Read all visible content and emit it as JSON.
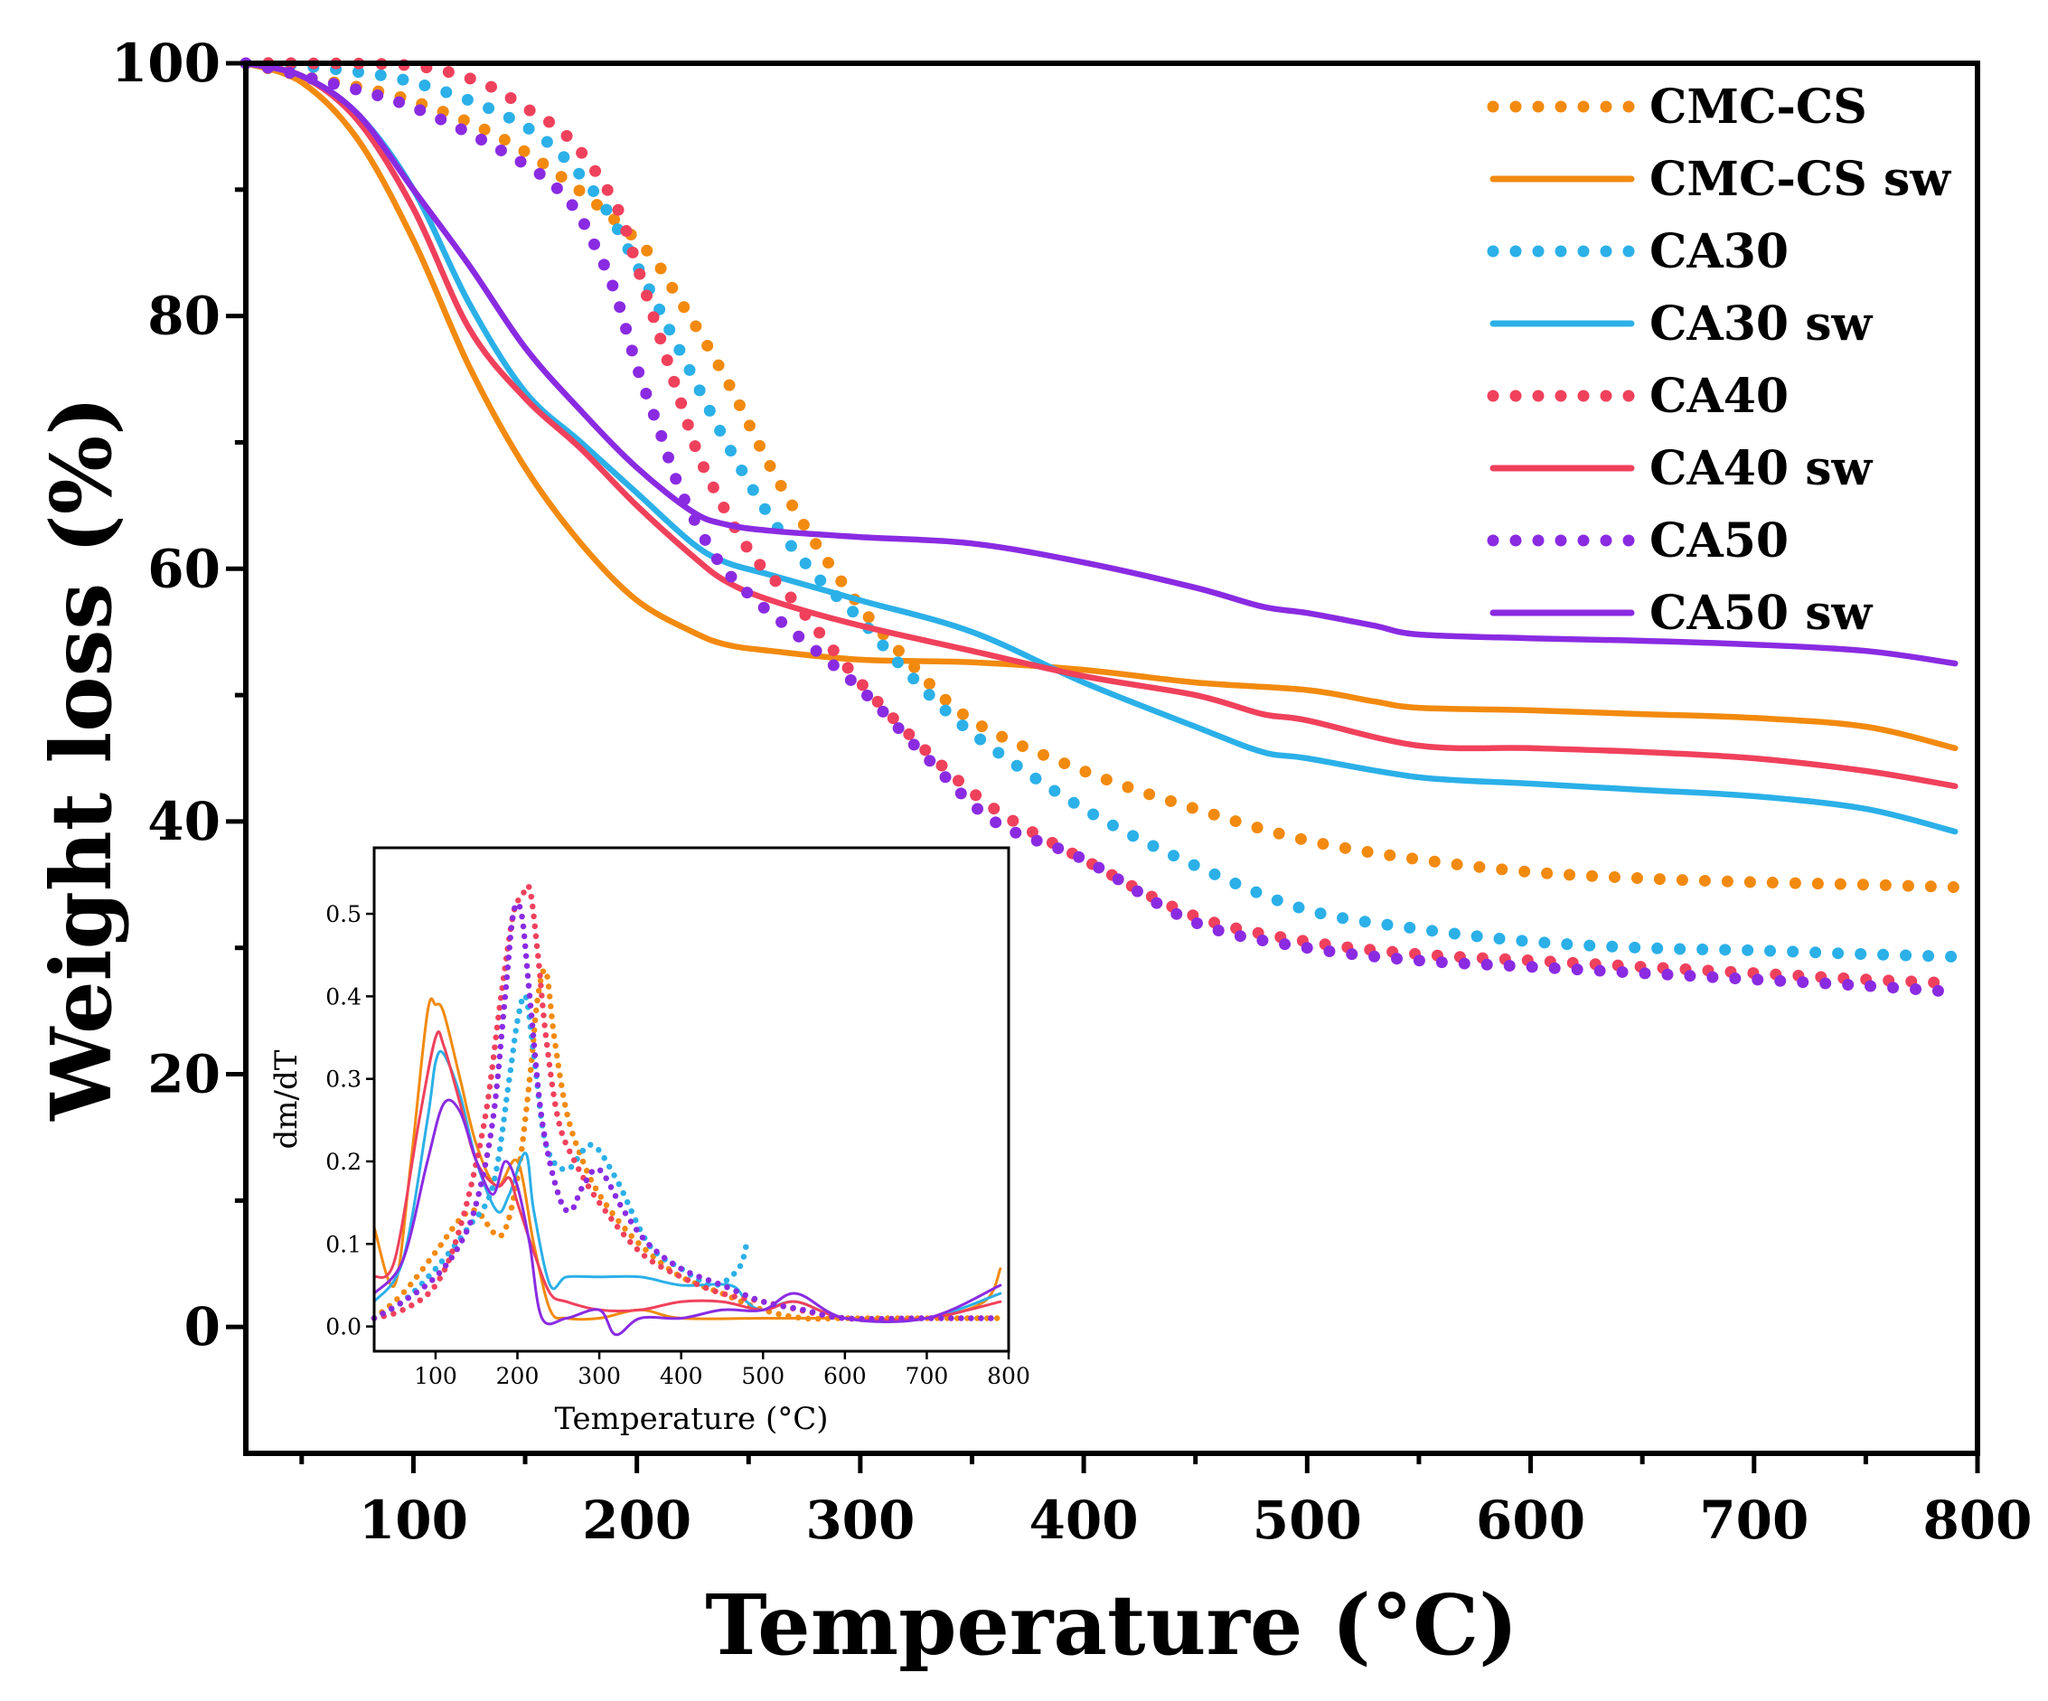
{
  "colors": {
    "CMC-CS": "#f28a0f",
    "CA30": "#2bb0e8",
    "CA40": "#f0415c",
    "CA50": "#8a2be2"
  },
  "chart_data": [
    {
      "type": "line",
      "xlabel": "Temperature (°C)",
      "ylabel": "Weight loss (%)",
      "xlim": [
        25,
        800
      ],
      "ylim": [
        -10,
        100
      ],
      "xticks": [
        100,
        200,
        300,
        400,
        500,
        600,
        700,
        800
      ],
      "xtick_labels": [
        "100",
        "200",
        "300",
        "400",
        "500",
        "600",
        "700",
        "800"
      ],
      "yticks": [
        0,
        20,
        40,
        60,
        80,
        100
      ],
      "ytick_labels": [
        "0",
        "20",
        "40",
        "60",
        "80",
        "100"
      ],
      "grid": false,
      "legend_position": "top-right",
      "series": [
        {
          "name": "CMC-CS",
          "style": "dotted",
          "color_key": "CMC-CS",
          "x": [
            25,
            50,
            100,
            150,
            200,
            220,
            240,
            260,
            280,
            300,
            320,
            350,
            400,
            450,
            500,
            550,
            600,
            650,
            700,
            750,
            790
          ],
          "y": [
            100,
            99,
            97,
            93,
            86,
            81,
            75,
            68,
            62,
            57,
            53,
            48,
            44,
            41,
            38.5,
            37,
            36,
            35.5,
            35.2,
            35,
            34.8
          ]
        },
        {
          "name": "CMC-CS sw",
          "style": "solid",
          "color_key": "CMC-CS",
          "x": [
            25,
            50,
            75,
            100,
            125,
            150,
            175,
            200,
            225,
            240,
            260,
            300,
            350,
            400,
            450,
            500,
            530,
            550,
            600,
            650,
            700,
            750,
            790
          ],
          "y": [
            100,
            98.5,
            94,
            86,
            76,
            68,
            62,
            57.5,
            55,
            54,
            53.5,
            52.8,
            52.6,
            52,
            51,
            50.4,
            49.5,
            49,
            48.8,
            48.5,
            48.2,
            47.5,
            45.8
          ]
        },
        {
          "name": "CA30",
          "style": "dotted",
          "color_key": "CA30",
          "x": [
            25,
            50,
            100,
            150,
            180,
            200,
            220,
            240,
            260,
            280,
            300,
            320,
            350,
            400,
            450,
            500,
            550,
            600,
            650,
            700,
            750,
            790
          ],
          "y": [
            100,
            99.8,
            98.5,
            95,
            90,
            84,
            77,
            70,
            64,
            59.5,
            56,
            52,
            47,
            41,
            36.5,
            33,
            31.5,
            30.5,
            30,
            29.8,
            29.5,
            29.3
          ]
        },
        {
          "name": "CA30 sw",
          "style": "solid",
          "color_key": "CA30",
          "x": [
            25,
            50,
            75,
            100,
            125,
            150,
            175,
            200,
            225,
            240,
            260,
            300,
            350,
            400,
            450,
            480,
            500,
            550,
            600,
            650,
            700,
            750,
            790
          ],
          "y": [
            100,
            99,
            96,
            90,
            81,
            74,
            70,
            66,
            62,
            60.5,
            59.5,
            57.5,
            55,
            51,
            47.5,
            45.5,
            45,
            43.5,
            43,
            42.5,
            42,
            41,
            39.2
          ]
        },
        {
          "name": "CA40",
          "style": "dotted",
          "color_key": "CA40",
          "x": [
            25,
            50,
            100,
            130,
            150,
            170,
            190,
            200,
            210,
            220,
            230,
            250,
            270,
            300,
            330,
            360,
            400,
            450,
            500,
            550,
            600,
            650,
            700,
            750,
            790
          ],
          "y": [
            100,
            100,
            99.8,
            98.5,
            96.5,
            94,
            89,
            84,
            78.5,
            73,
            68,
            61.5,
            57.5,
            51,
            45.5,
            41,
            37,
            32.5,
            30.5,
            29.5,
            29,
            28.5,
            28,
            27.5,
            27.2
          ]
        },
        {
          "name": "CA40  sw",
          "style": "solid",
          "color_key": "CA40",
          "x": [
            25,
            50,
            75,
            100,
            125,
            150,
            175,
            200,
            225,
            240,
            260,
            300,
            350,
            400,
            450,
            480,
            500,
            550,
            600,
            650,
            700,
            750,
            790
          ],
          "y": [
            100,
            99,
            95.5,
            88.5,
            79,
            73.5,
            69.5,
            65,
            61,
            59,
            57.5,
            55.5,
            53.5,
            51.5,
            50,
            48.5,
            48,
            46,
            45.8,
            45.5,
            45,
            44,
            42.8
          ]
        },
        {
          "name": "CA50",
          "style": "dotted",
          "color_key": "CA50",
          "x": [
            25,
            50,
            100,
            150,
            170,
            180,
            190,
            200,
            210,
            220,
            235,
            250,
            270,
            300,
            330,
            360,
            400,
            450,
            500,
            550,
            600,
            650,
            700,
            750,
            790
          ],
          "y": [
            100,
            99,
            96.5,
            92,
            89,
            86,
            82,
            76,
            71,
            66,
            61,
            58,
            55,
            50.5,
            45,
            40,
            37,
            32,
            30,
            29,
            28.5,
            28,
            27.5,
            27,
            26.5
          ]
        },
        {
          "name": "CA50  sw",
          "style": "solid",
          "color_key": "CA50",
          "x": [
            25,
            50,
            75,
            100,
            125,
            150,
            175,
            200,
            225,
            240,
            260,
            300,
            350,
            400,
            450,
            480,
            500,
            530,
            550,
            600,
            650,
            700,
            750,
            790
          ],
          "y": [
            100,
            99,
            96,
            90,
            84,
            77.5,
            72.5,
            68,
            64.5,
            63.5,
            63,
            62.5,
            62,
            60.5,
            58.5,
            57,
            56.5,
            55.5,
            54.8,
            54.5,
            54.3,
            54,
            53.5,
            52.5
          ]
        }
      ]
    },
    {
      "type": "line",
      "role": "inset",
      "xlabel": "Temperature (°C)",
      "ylabel": "dm/dT",
      "xlim": [
        25,
        800
      ],
      "ylim": [
        0.03,
        -0.58
      ],
      "y_inverted": true,
      "xticks": [
        100,
        200,
        300,
        400,
        500,
        600,
        700,
        800
      ],
      "xtick_labels": [
        "100",
        "200",
        "300",
        "400",
        "500",
        "600",
        "700",
        "800"
      ],
      "yticks": [
        0.0,
        -0.1,
        -0.2,
        -0.3,
        -0.4,
        -0.5
      ],
      "ytick_labels": [
        "0.0",
        "0.1",
        "0.2",
        "0.3",
        "0.4",
        "0.5"
      ],
      "grid": false,
      "series": [
        {
          "style": "dotted",
          "color_key": "CMC-CS",
          "x": [
            25,
            60,
            100,
            130,
            150,
            180,
            200,
            215,
            225,
            235,
            245,
            260,
            280,
            300,
            330,
            360,
            400,
            450,
            500,
            550,
            600,
            700,
            790
          ],
          "y": [
            -0.01,
            -0.04,
            -0.09,
            -0.13,
            -0.14,
            -0.11,
            -0.18,
            -0.3,
            -0.4,
            -0.43,
            -0.35,
            -0.26,
            -0.2,
            -0.16,
            -0.12,
            -0.09,
            -0.06,
            -0.04,
            -0.02,
            -0.01,
            -0.01,
            -0.01,
            -0.01
          ]
        },
        {
          "style": "solid",
          "color_key": "CMC-CS",
          "x": [
            25,
            50,
            70,
            90,
            100,
            110,
            130,
            150,
            175,
            200,
            220,
            240,
            260,
            300,
            350,
            400,
            500,
            600,
            700,
            770,
            790
          ],
          "y": [
            -0.12,
            -0.05,
            -0.2,
            -0.38,
            -0.39,
            -0.38,
            -0.3,
            -0.22,
            -0.17,
            -0.2,
            -0.1,
            -0.02,
            -0.01,
            -0.01,
            -0.02,
            -0.01,
            -0.01,
            -0.01,
            -0.01,
            -0.03,
            -0.07
          ]
        },
        {
          "style": "dotted",
          "color_key": "CA30",
          "x": [
            25,
            60,
            100,
            140,
            170,
            190,
            200,
            210,
            220,
            235,
            260,
            290,
            320,
            360,
            400,
            440,
            470,
            480
          ],
          "y": [
            -0.01,
            -0.03,
            -0.07,
            -0.12,
            -0.17,
            -0.3,
            -0.37,
            -0.4,
            -0.33,
            -0.22,
            -0.19,
            -0.22,
            -0.18,
            -0.1,
            -0.07,
            -0.05,
            -0.07,
            -0.1
          ]
        },
        {
          "style": "solid",
          "color_key": "CA30",
          "x": [
            25,
            60,
            90,
            100,
            110,
            130,
            150,
            175,
            190,
            210,
            220,
            240,
            260,
            300,
            350,
            400,
            460,
            480,
            500,
            540,
            600,
            700,
            790
          ],
          "y": [
            -0.03,
            -0.08,
            -0.25,
            -0.32,
            -0.33,
            -0.28,
            -0.2,
            -0.14,
            -0.16,
            -0.21,
            -0.14,
            -0.05,
            -0.06,
            -0.06,
            -0.06,
            -0.05,
            -0.05,
            -0.03,
            -0.02,
            -0.03,
            -0.01,
            -0.01,
            -0.04
          ]
        },
        {
          "style": "dotted",
          "color_key": "CA40",
          "x": [
            25,
            60,
            100,
            130,
            160,
            180,
            195,
            205,
            215,
            225,
            235,
            250,
            270,
            300,
            350,
            400,
            450,
            500,
            600,
            700,
            790
          ],
          "y": [
            -0.01,
            -0.02,
            -0.05,
            -0.12,
            -0.25,
            -0.4,
            -0.5,
            -0.52,
            -0.53,
            -0.45,
            -0.35,
            -0.25,
            -0.2,
            -0.15,
            -0.09,
            -0.06,
            -0.04,
            -0.03,
            -0.01,
            -0.01,
            -0.01
          ]
        },
        {
          "style": "solid",
          "color_key": "CA40",
          "x": [
            25,
            50,
            80,
            100,
            110,
            130,
            150,
            175,
            190,
            200,
            220,
            240,
            260,
            300,
            350,
            400,
            450,
            500,
            540,
            600,
            700,
            790
          ],
          "y": [
            -0.06,
            -0.08,
            -0.25,
            -0.35,
            -0.34,
            -0.27,
            -0.2,
            -0.17,
            -0.18,
            -0.15,
            -0.09,
            -0.04,
            -0.03,
            -0.02,
            -0.02,
            -0.03,
            -0.03,
            -0.02,
            -0.03,
            -0.01,
            -0.01,
            -0.03
          ]
        },
        {
          "style": "dotted",
          "color_key": "CA50",
          "x": [
            25,
            60,
            100,
            130,
            150,
            170,
            185,
            195,
            205,
            215,
            230,
            250,
            265,
            280,
            300,
            330,
            360,
            400,
            450,
            500,
            550,
            600,
            700,
            790
          ],
          "y": [
            -0.01,
            -0.03,
            -0.06,
            -0.1,
            -0.15,
            -0.25,
            -0.4,
            -0.5,
            -0.5,
            -0.4,
            -0.25,
            -0.16,
            -0.14,
            -0.17,
            -0.19,
            -0.14,
            -0.1,
            -0.07,
            -0.05,
            -0.03,
            -0.02,
            -0.01,
            -0.01,
            -0.01
          ]
        },
        {
          "style": "solid",
          "color_key": "CA50",
          "x": [
            25,
            60,
            90,
            110,
            130,
            150,
            170,
            185,
            200,
            215,
            230,
            260,
            300,
            320,
            350,
            400,
            450,
            500,
            540,
            600,
            700,
            790
          ],
          "y": [
            -0.04,
            -0.08,
            -0.2,
            -0.27,
            -0.26,
            -0.2,
            -0.16,
            -0.2,
            -0.17,
            -0.1,
            -0.01,
            -0.01,
            -0.02,
            0.01,
            -0.01,
            -0.01,
            -0.02,
            -0.02,
            -0.04,
            -0.01,
            -0.01,
            -0.05
          ]
        }
      ]
    }
  ]
}
